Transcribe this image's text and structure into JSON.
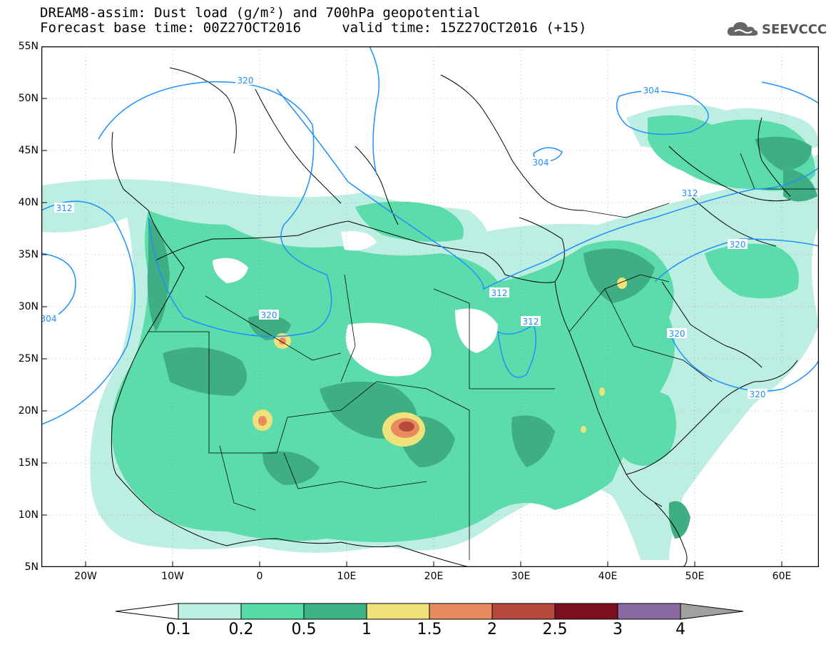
{
  "header": {
    "line1": "DREAM8-assim: Dust load (g/m²) and 700hPa geopotential",
    "line2": "Forecast base time: 00Z27OCT2016     valid time: 15Z27OCT2016 (+15)"
  },
  "logo": {
    "text": "SEEVCCC",
    "icon": "cloud-icon"
  },
  "axes": {
    "lat_labels": [
      "55N",
      "50N",
      "45N",
      "40N",
      "35N",
      "30N",
      "25N",
      "20N",
      "15N",
      "10N",
      "5N"
    ],
    "lon_labels": [
      "20W",
      "10W",
      "0",
      "10E",
      "20E",
      "30E",
      "40E",
      "50E",
      "60E"
    ]
  },
  "isolines": {
    "labels": [
      "320",
      "312",
      "304",
      "320",
      "304",
      "312",
      "312",
      "320",
      "312",
      "320",
      "304",
      "320"
    ]
  },
  "colorbar": {
    "labels": [
      "0.1",
      "0.2",
      "0.5",
      "1",
      "1.5",
      "2",
      "2.5",
      "3",
      "4"
    ],
    "colors": [
      "#bdeee2",
      "#55dba6",
      "#3cb285",
      "#efe27a",
      "#e88c5f",
      "#b8493d",
      "#7a0f1f",
      "#8a6aa2",
      "#a0a0a0"
    ]
  },
  "colors": {
    "low": "#bdeee2",
    "mid": "#5bdcaa",
    "high": "#3fae83",
    "yellow": "#efe27a",
    "orange": "#e88c5f",
    "red": "#b8493d",
    "isoline": "#1e90ff"
  }
}
